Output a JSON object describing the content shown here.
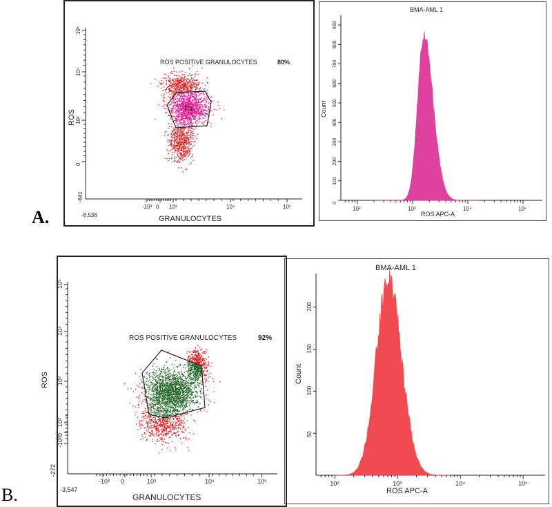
{
  "panels": {
    "a": {
      "letter": "A."
    },
    "b": {
      "letter": "B."
    }
  },
  "colors": {
    "red_events": "#e02222",
    "a_gate_fill": "#e0209a",
    "b_gate_fill": "#1f6b2a",
    "a_hist_fill": "#e0409e",
    "b_hist_fill": "#ef4a50",
    "axis": "#222222"
  },
  "chart_data": [
    {
      "id": "a-scatter",
      "type": "scatter",
      "title": "",
      "annotation": "ROS POSITIVE GRANULOCYTES",
      "annotation_value": "80%",
      "gate_label": "P3",
      "xlabel": "GRANULOCYTES",
      "ylabel": "ROS",
      "x_ticks": [
        "-10³",
        "0",
        "10³",
        "10⁴",
        "10⁵"
      ],
      "x_min_label": "-8,536",
      "y_ticks": [
        "0",
        "10³",
        "10⁴",
        "10⁵"
      ],
      "y_min_label": "-841",
      "gated_percent": 80
    },
    {
      "id": "a-histogram",
      "type": "area",
      "title": "BMA-AML 1",
      "xlabel": "ROS APC-A",
      "ylabel": "Count",
      "x_ticks": [
        "10²",
        "10³",
        "10⁴",
        "10⁵"
      ],
      "y_ticks": [
        0,
        100,
        200,
        300,
        400,
        500,
        600,
        700,
        800,
        900
      ],
      "ylim": [
        0,
        950
      ],
      "peak_log10": 3.2,
      "peak_count": 850
    },
    {
      "id": "b-scatter",
      "type": "scatter",
      "title": "",
      "annotation": "ROS POSITIVE GRANULOCYTES",
      "annotation_value": "92%",
      "xlabel": "GRANULOCYTES",
      "ylabel": "ROS",
      "x_ticks": [
        "-10³",
        "0",
        "10³",
        "10⁴",
        "10⁵"
      ],
      "x_min_label": "-3,547",
      "y_ticks": [
        "-10²",
        "0",
        "10²",
        "10³",
        "10⁴",
        "10⁵"
      ],
      "y_min_label": "-272",
      "gated_percent": 92
    },
    {
      "id": "b-histogram",
      "type": "area",
      "title": "BMA-AML 1",
      "xlabel": "ROS APC-A",
      "ylabel": "Count",
      "x_ticks": [
        "10²",
        "10³",
        "10⁴",
        "10⁵"
      ],
      "y_ticks": [
        50,
        100,
        150,
        200
      ],
      "ylim": [
        0,
        240
      ],
      "peak_log10": 2.85,
      "peak_count": 235
    }
  ]
}
